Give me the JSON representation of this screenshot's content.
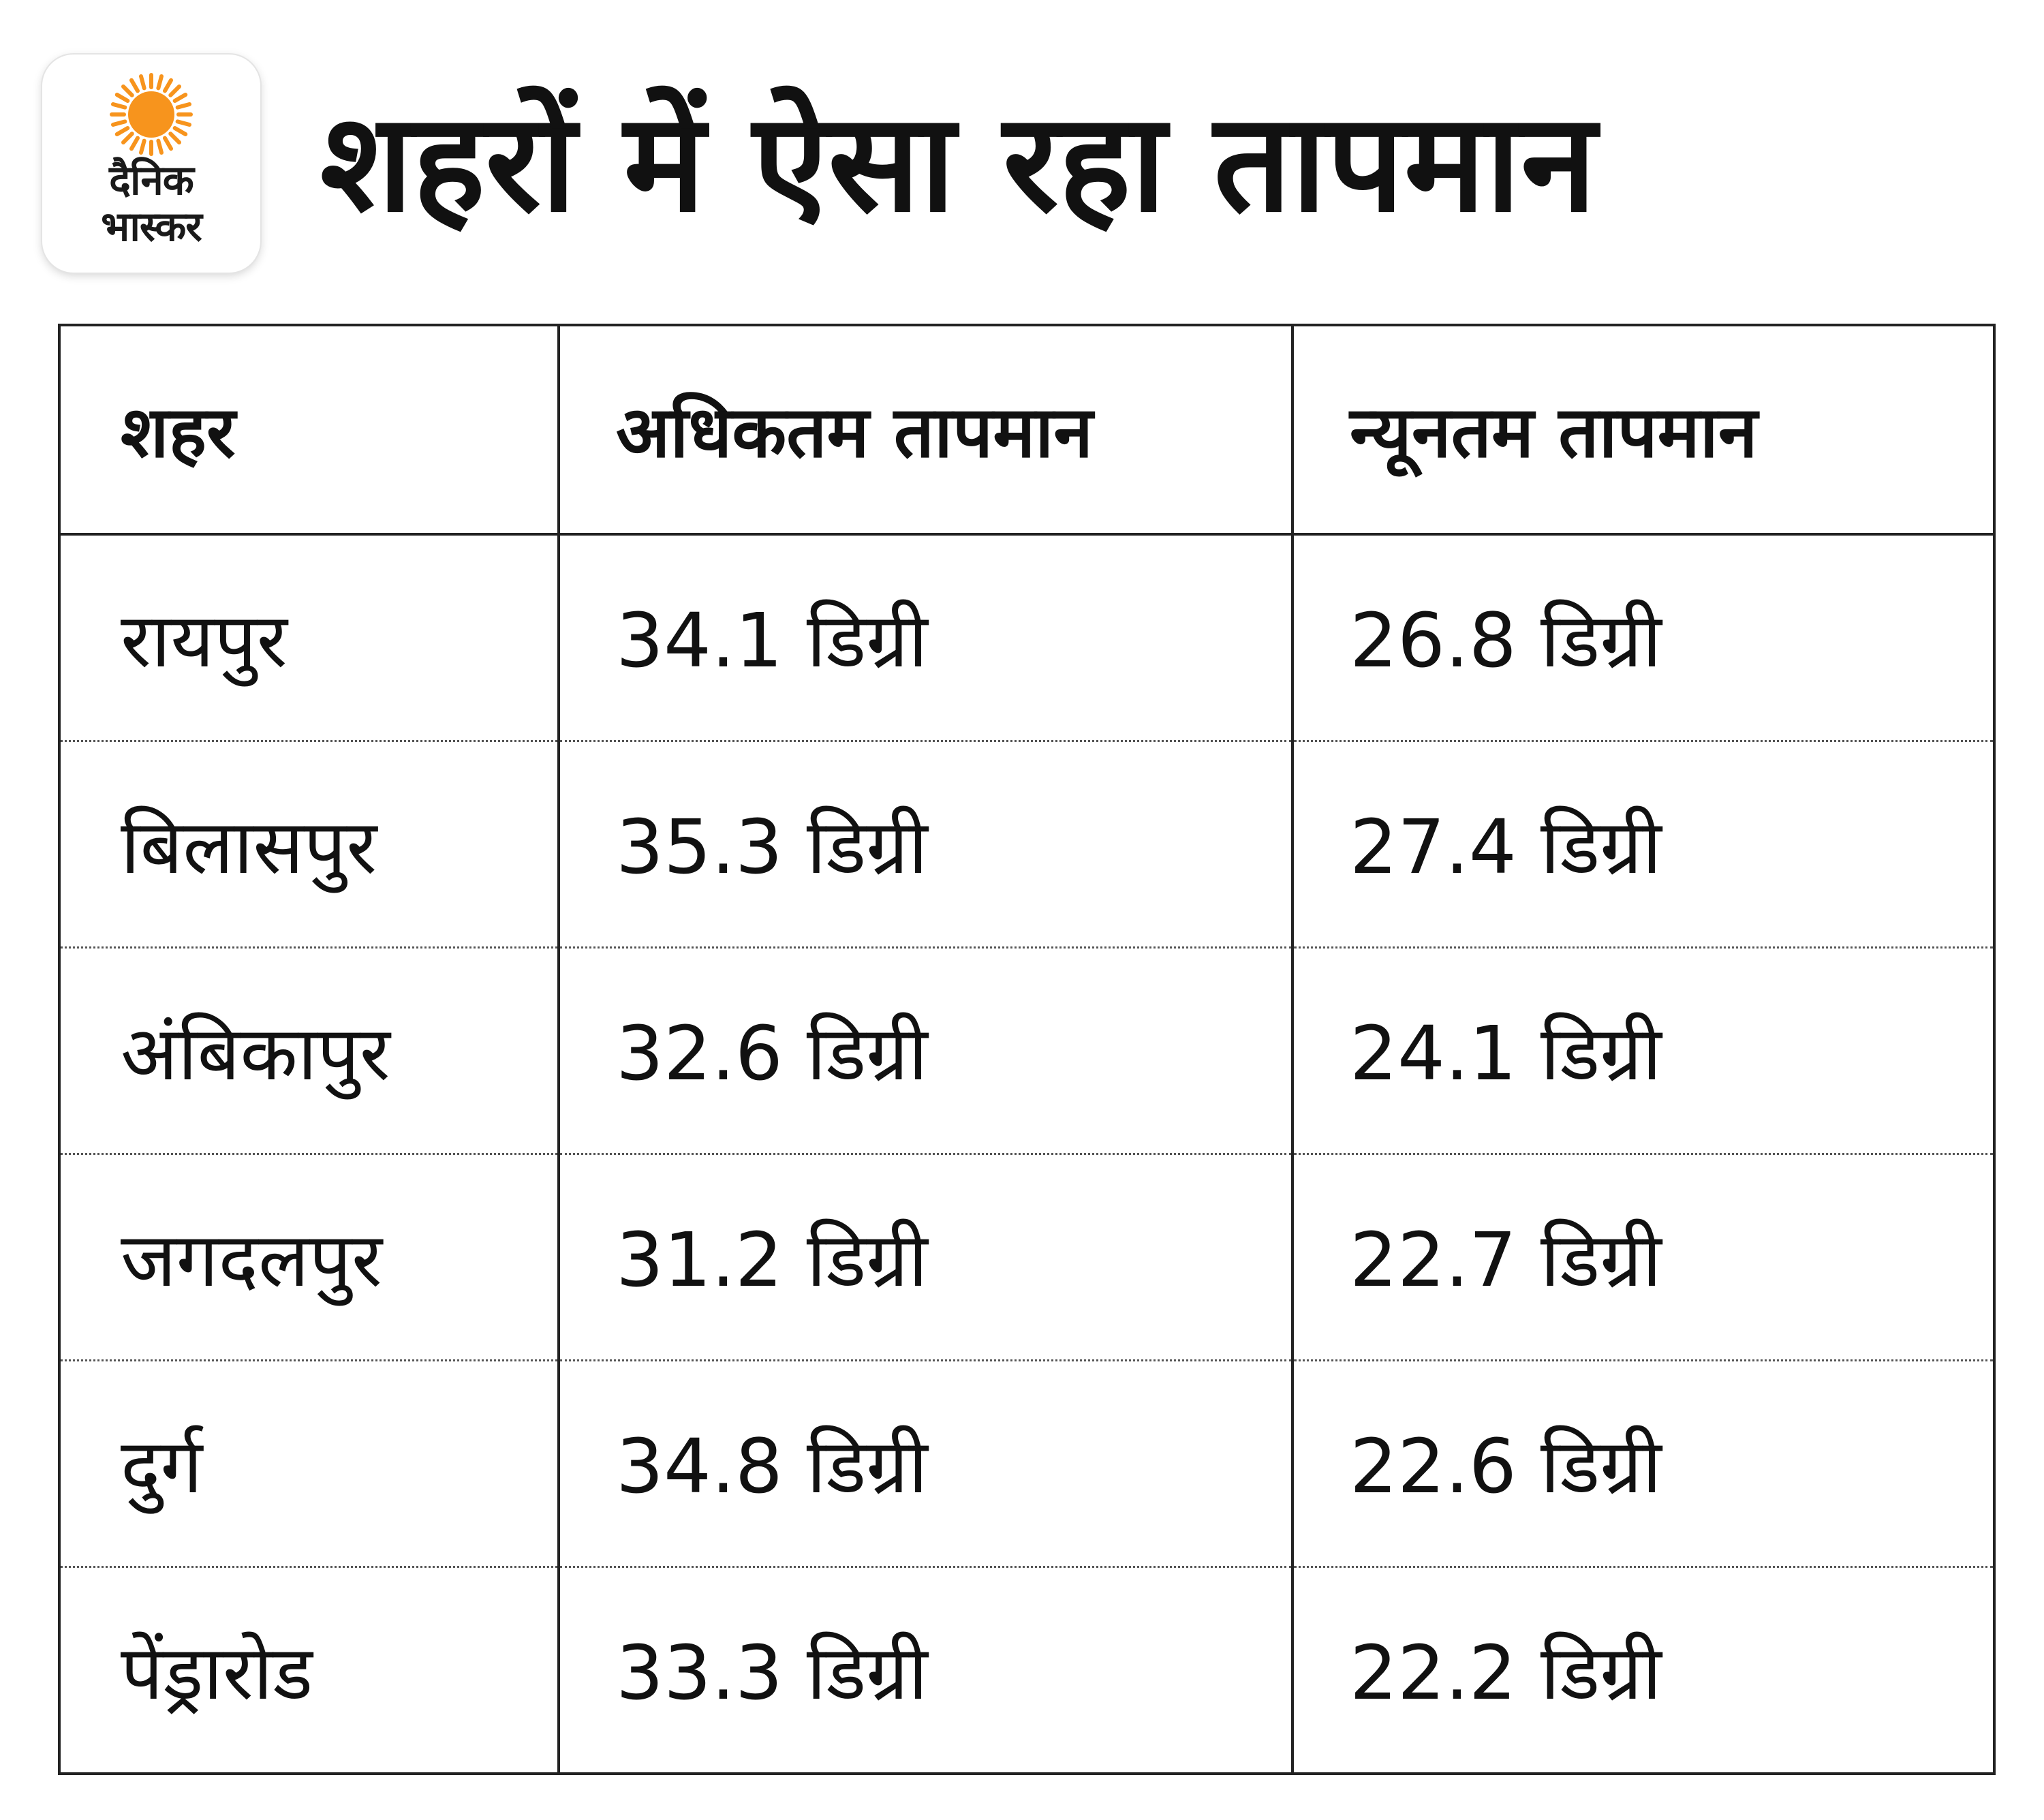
{
  "header": {
    "logo": {
      "line1": "दैनिक",
      "line2": "भास्कर",
      "sun_color": "#f7941d"
    },
    "title": "शहरों में ऐसा रहा तापमान"
  },
  "table": {
    "headers": [
      "शहर",
      "अधिकतम तापमान",
      "न्यूनतम तापमान"
    ],
    "rows": [
      {
        "city": "रायपुर",
        "max": "34.1 डिग्री",
        "min": "26.8 डिग्री"
      },
      {
        "city": "बिलासपुर",
        "max": "35.3 डिग्री",
        "min": "27.4 डिग्री"
      },
      {
        "city": "अंबिकापुर",
        "max": "32.6 डिग्री",
        "min": "24.1  डिग्री"
      },
      {
        "city": "जगदलपुर",
        "max": "31.2  डिग्री",
        "min": "22.7 डिग्री"
      },
      {
        "city": "दुर्ग",
        "max": "34.8 डिग्री",
        "min": "22.6 डिग्री"
      },
      {
        "city": "पेंड्रारोड",
        "max": "33.3 डिग्री",
        "min": "22.2 डिग्री"
      }
    ]
  }
}
